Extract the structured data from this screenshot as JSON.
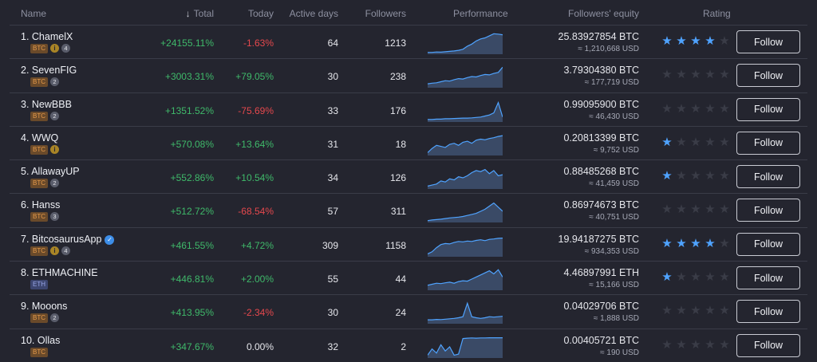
{
  "header": {
    "name": "Name",
    "sort_arrow": "↓",
    "total": "Total",
    "today": "Today",
    "active_days": "Active days",
    "followers": "Followers",
    "performance": "Performance",
    "followers_equity": "Followers' equity",
    "rating": "Rating"
  },
  "follow_label": "Follow",
  "rows": [
    {
      "name": "1. ChamelX",
      "verified": false,
      "badges": [
        "BTC",
        "i",
        "4"
      ],
      "total": "+24155.11%",
      "today": "-1.63%",
      "today_sign": "neg",
      "active_days": "64",
      "followers": "1213",
      "equity": "25.83927854 BTC",
      "equity_usd": "≈ 1,210,668 USD",
      "rating": 4,
      "spark": [
        0.05,
        0.05,
        0.07,
        0.06,
        0.08,
        0.1,
        0.12,
        0.15,
        0.2,
        0.35,
        0.45,
        0.6,
        0.7,
        0.75,
        0.85,
        0.95,
        0.93,
        0.9
      ]
    },
    {
      "name": "2. SevenFIG",
      "verified": false,
      "badges": [
        "BTC",
        "2"
      ],
      "total": "+3003.31%",
      "today": "+79.05%",
      "today_sign": "pos",
      "active_days": "30",
      "followers": "238",
      "equity": "3.79304380 BTC",
      "equity_usd": "≈ 177,719 USD",
      "rating": 0,
      "spark": [
        0.15,
        0.18,
        0.2,
        0.25,
        0.3,
        0.28,
        0.35,
        0.4,
        0.38,
        0.45,
        0.5,
        0.48,
        0.55,
        0.6,
        0.58,
        0.65,
        0.7,
        0.95
      ]
    },
    {
      "name": "3. NewBBB",
      "verified": false,
      "badges": [
        "BTC",
        "2"
      ],
      "total": "+1351.52%",
      "today": "-75.69%",
      "today_sign": "neg",
      "active_days": "33",
      "followers": "176",
      "equity": "0.99095900 BTC",
      "equity_usd": "≈ 46,430 USD",
      "rating": 0,
      "spark": [
        0.08,
        0.08,
        0.1,
        0.1,
        0.12,
        0.12,
        0.13,
        0.14,
        0.15,
        0.15,
        0.16,
        0.18,
        0.2,
        0.25,
        0.3,
        0.4,
        0.9,
        0.2
      ]
    },
    {
      "name": "4. WWQ",
      "verified": false,
      "badges": [
        "BTC",
        "i"
      ],
      "total": "+570.08%",
      "today": "+13.64%",
      "today_sign": "pos",
      "active_days": "31",
      "followers": "18",
      "equity": "0.20813399 BTC",
      "equity_usd": "≈ 9,752 USD",
      "rating": 1,
      "spark": [
        0.1,
        0.3,
        0.45,
        0.4,
        0.35,
        0.5,
        0.55,
        0.45,
        0.6,
        0.65,
        0.55,
        0.7,
        0.75,
        0.72,
        0.78,
        0.82,
        0.88,
        0.92
      ]
    },
    {
      "name": "5. AllawayUP",
      "verified": false,
      "badges": [
        "BTC",
        "2"
      ],
      "total": "+552.86%",
      "today": "+10.54%",
      "today_sign": "pos",
      "active_days": "34",
      "followers": "126",
      "equity": "0.88485268 BTC",
      "equity_usd": "≈ 41,459 USD",
      "rating": 1,
      "spark": [
        0.1,
        0.15,
        0.2,
        0.35,
        0.3,
        0.45,
        0.4,
        0.55,
        0.5,
        0.6,
        0.75,
        0.85,
        0.8,
        0.9,
        0.7,
        0.85,
        0.6,
        0.65
      ]
    },
    {
      "name": "6. Hanss",
      "verified": false,
      "badges": [
        "BTC",
        "3"
      ],
      "total": "+512.72%",
      "today": "-68.54%",
      "today_sign": "neg",
      "active_days": "57",
      "followers": "311",
      "equity": "0.86974673 BTC",
      "equity_usd": "≈ 40,751 USD",
      "rating": 0,
      "spark": [
        0.05,
        0.08,
        0.1,
        0.12,
        0.15,
        0.18,
        0.2,
        0.22,
        0.25,
        0.3,
        0.35,
        0.4,
        0.5,
        0.6,
        0.75,
        0.9,
        0.7,
        0.5
      ]
    },
    {
      "name": "7. BitcosaurusApp",
      "verified": true,
      "badges": [
        "BTC",
        "i",
        "4"
      ],
      "total": "+461.55%",
      "today": "+4.72%",
      "today_sign": "pos",
      "active_days": "309",
      "followers": "1158",
      "equity": "19.94187275 BTC",
      "equity_usd": "≈ 934,353 USD",
      "rating": 4,
      "spark": [
        0.1,
        0.2,
        0.4,
        0.55,
        0.6,
        0.58,
        0.65,
        0.7,
        0.68,
        0.72,
        0.7,
        0.75,
        0.78,
        0.74,
        0.8,
        0.82,
        0.85,
        0.86
      ]
    },
    {
      "name": "8. ETHMACHINE",
      "verified": false,
      "badges": [
        "ETH"
      ],
      "total": "+446.81%",
      "today": "+2.00%",
      "today_sign": "pos",
      "active_days": "55",
      "followers": "44",
      "equity": "4.46897991 ETH",
      "equity_usd": "≈ 15,166 USD",
      "rating": 1,
      "spark": [
        0.2,
        0.25,
        0.3,
        0.28,
        0.32,
        0.35,
        0.3,
        0.38,
        0.42,
        0.4,
        0.5,
        0.6,
        0.7,
        0.8,
        0.9,
        0.75,
        0.95,
        0.6
      ]
    },
    {
      "name": "9. Mooons",
      "verified": false,
      "badges": [
        "BTC",
        "2"
      ],
      "total": "+413.95%",
      "today": "-2.34%",
      "today_sign": "neg",
      "active_days": "30",
      "followers": "24",
      "equity": "0.04029706 BTC",
      "equity_usd": "≈ 1,888 USD",
      "rating": 0,
      "spark": [
        0.15,
        0.15,
        0.17,
        0.16,
        0.18,
        0.2,
        0.22,
        0.25,
        0.3,
        0.95,
        0.3,
        0.25,
        0.22,
        0.25,
        0.3,
        0.28,
        0.3,
        0.32
      ]
    },
    {
      "name": "10. Ollas",
      "verified": false,
      "badges": [
        "BTC"
      ],
      "total": "+347.67%",
      "today": "0.00%",
      "today_sign": "neu",
      "active_days": "32",
      "followers": "2",
      "equity": "0.00405721 BTC",
      "equity_usd": "≈ 190 USD",
      "rating": 0,
      "spark": [
        0.1,
        0.4,
        0.2,
        0.6,
        0.3,
        0.5,
        0.1,
        0.15,
        0.9,
        0.92,
        0.93,
        0.92,
        0.93,
        0.93,
        0.94,
        0.94,
        0.94,
        0.94
      ]
    }
  ],
  "colors": {
    "background": "#24252f",
    "positive": "#3fb96a",
    "negative": "#e5484d",
    "star_on": "#4fa3ff",
    "spark_line": "#4fa3ff"
  }
}
